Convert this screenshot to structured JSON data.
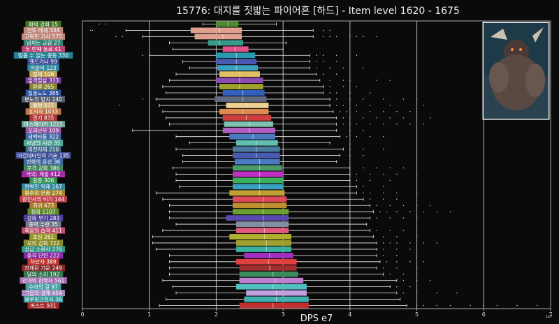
{
  "chart_data": {
    "type": "boxplot",
    "title": "15776: 대지를 짓밟는 파이어혼 [하드] - Item level 1620 - 1675",
    "top_title_fragment": "~ ~",
    "xlabel": "DPS e7",
    "scale_note": "1e7",
    "xlim": [
      0,
      7
    ],
    "x_ticks": [
      0,
      1,
      2,
      3,
      4,
      5,
      6,
      7
    ],
    "boss_image_label": "fire-horn-boss-portrait",
    "series": [
      {
        "name": "화력 강화 15",
        "color": "#4d8a2e",
        "whislo": 1.8,
        "q1": 2.0,
        "med": 2.18,
        "q3": 2.33,
        "whishi": 2.9,
        "fliers": [
          0.25,
          0.35
        ]
      },
      {
        "name": "전투 태세 334",
        "color": "#e0a090",
        "whislo": 0.65,
        "q1": 1.62,
        "med": 2.05,
        "q3": 2.38,
        "whishi": 3.45,
        "fliers": [
          0.12,
          0.15,
          3.6,
          3.7
        ]
      },
      {
        "name": "고독한 기사 575",
        "color": "#e0a090",
        "whislo": 0.9,
        "q1": 1.68,
        "med": 2.1,
        "q3": 2.38,
        "whishi": 3.45,
        "fliers": [
          0.5,
          0.6,
          3.6,
          3.7,
          3.8,
          4.0,
          4.1,
          4.2,
          4.4
        ]
      },
      {
        "name": "넘치는 교감 27",
        "color": "#3a9a8a",
        "whislo": 1.3,
        "q1": 1.88,
        "med": 2.05,
        "q3": 2.4,
        "whishi": 3.05,
        "fliers": []
      },
      {
        "name": "두 번째 동료 41",
        "color": "#e0508a",
        "whislo": 1.35,
        "q1": 2.1,
        "med": 2.28,
        "q3": 2.48,
        "whishi": 3.0,
        "fliers": []
      },
      {
        "name": "멈출 수 없는 충동 330",
        "color": "#2a9ab0",
        "whislo": 1.0,
        "q1": 2.0,
        "med": 2.3,
        "q3": 2.58,
        "whishi": 3.4,
        "fliers": [
          0.9,
          3.5,
          3.6,
          3.8,
          4.1
        ]
      },
      {
        "name": "핸드거너 99",
        "color": "#4a5ab0",
        "whislo": 1.5,
        "q1": 2.0,
        "med": 2.3,
        "q3": 2.6,
        "whishi": 3.4,
        "fliers": [
          3.5,
          3.6,
          3.8
        ]
      },
      {
        "name": "이슬비 123",
        "color": "#3aa0c0",
        "whislo": 1.6,
        "q1": 2.02,
        "med": 2.3,
        "q3": 2.62,
        "whishi": 3.4,
        "fliers": [
          3.5,
          3.7,
          3.9,
          4.2
        ]
      },
      {
        "name": "절제 106",
        "color": "#e0c060",
        "whislo": 1.4,
        "q1": 2.05,
        "med": 2.35,
        "q3": 2.65,
        "whishi": 3.5,
        "fliers": [
          3.6,
          3.8
        ]
      },
      {
        "name": "일격필살 333",
        "color": "#8a4ab0",
        "whislo": 1.3,
        "q1": 2.0,
        "med": 2.35,
        "q3": 2.7,
        "whishi": 3.55,
        "fliers": [
          3.7,
          3.9,
          4.0,
          4.4,
          4.6
        ]
      },
      {
        "name": "환류 265",
        "color": "#a0a030",
        "whislo": 1.2,
        "q1": 2.05,
        "med": 2.35,
        "q3": 2.7,
        "whishi": 3.6,
        "fliers": [
          3.7,
          3.9,
          4.1
        ]
      },
      {
        "name": "질풍노도 385",
        "color": "#3060c0",
        "whislo": 1.25,
        "q1": 2.1,
        "med": 2.4,
        "q3": 2.72,
        "whishi": 3.6,
        "fliers": [
          3.7,
          3.8,
          4.0,
          4.3
        ]
      },
      {
        "name": "분노의 망치 240",
        "color": "#606a80",
        "whislo": 1.1,
        "q1": 1.98,
        "med": 2.4,
        "q3": 2.75,
        "whishi": 3.7,
        "fliers": [
          0.9,
          3.8,
          4.0,
          4.2,
          4.5,
          4.8,
          5.0,
          6.0
        ]
      },
      {
        "name": "절정 577",
        "color": "#f0d090",
        "whislo": 1.15,
        "q1": 2.15,
        "med": 2.45,
        "q3": 2.78,
        "whishi": 3.7,
        "fliers": [
          0.55,
          3.8,
          3.9,
          4.1,
          4.3,
          4.6,
          5.1
        ]
      },
      {
        "name": "포식자 1033",
        "color": "#e08a50",
        "whislo": 1.2,
        "q1": 2.05,
        "med": 2.4,
        "q3": 2.78,
        "whishi": 3.75,
        "fliers": [
          3.85,
          3.95,
          4.1,
          4.3,
          4.5,
          4.7,
          4.9
        ]
      },
      {
        "name": "광기 835",
        "color": "#d04040",
        "whislo": 1.25,
        "q1": 2.1,
        "med": 2.45,
        "q3": 2.82,
        "whishi": 3.8,
        "fliers": [
          3.9,
          4.0,
          4.2,
          4.4,
          4.6,
          4.8,
          5.2
        ]
      },
      {
        "name": "피스메이커 1215",
        "color": "#80c0b0",
        "whislo": 1.3,
        "q1": 2.12,
        "med": 2.5,
        "q3": 2.85,
        "whishi": 3.8,
        "fliers": [
          3.9,
          4.0,
          4.1,
          4.3,
          4.5,
          4.7,
          4.9,
          5.1
        ]
      },
      {
        "name": "오의난무 109",
        "color": "#b060c0",
        "whislo": 0.75,
        "q1": 2.1,
        "med": 2.5,
        "q3": 2.88,
        "whishi": 3.8,
        "fliers": [
          4.0,
          4.2
        ]
      },
      {
        "name": "세맥타통 322",
        "color": "#4a7ac0",
        "whislo": 1.4,
        "q1": 2.2,
        "med": 2.55,
        "q3": 2.88,
        "whishi": 3.85,
        "fliers": [
          3.95,
          4.1,
          4.3,
          4.5
        ]
      },
      {
        "name": "사냥의 시간 35",
        "color": "#60c0b0",
        "whislo": 1.6,
        "q1": 2.3,
        "med": 2.6,
        "q3": 2.92,
        "whishi": 3.7,
        "fliers": []
      },
      {
        "name": "역천지체 210",
        "color": "#4a7aa0",
        "whislo": 1.4,
        "q1": 2.25,
        "med": 2.6,
        "q3": 2.95,
        "whishi": 3.9,
        "fliers": [
          4.0,
          4.2,
          4.5
        ]
      },
      {
        "name": "아르데타인의 기술 135",
        "color": "#4a5ab0",
        "whislo": 1.5,
        "q1": 2.25,
        "med": 2.6,
        "q3": 2.95,
        "whishi": 3.85,
        "fliers": [
          4.0,
          4.2
        ]
      },
      {
        "name": "진화의 유산 36",
        "color": "#4a7ac0",
        "whislo": 1.5,
        "q1": 2.28,
        "med": 2.65,
        "q3": 2.95,
        "whishi": 3.8,
        "fliers": []
      },
      {
        "name": "포격 강화 386",
        "color": "#4a9a6a",
        "whislo": 1.35,
        "q1": 2.25,
        "med": 2.65,
        "q3": 2.98,
        "whishi": 4.0,
        "fliers": [
          4.2,
          4.4,
          4.6,
          4.8
        ]
      },
      {
        "name": "극의: 체술 412",
        "color": "#c030c0",
        "whislo": 1.4,
        "q1": 2.25,
        "med": 2.65,
        "q3": 3.0,
        "whishi": 4.0,
        "fliers": [
          4.1,
          4.3,
          4.5,
          4.7,
          5.0
        ]
      },
      {
        "name": "갈증 306",
        "color": "#3ab05a",
        "whislo": 1.4,
        "q1": 2.25,
        "med": 2.65,
        "q3": 3.0,
        "whishi": 4.0,
        "fliers": [
          4.1,
          4.3,
          4.6
        ]
      },
      {
        "name": "완벽한 억제 167",
        "color": "#3aa0c0",
        "whislo": 1.45,
        "q1": 2.25,
        "med": 2.65,
        "q3": 3.0,
        "whishi": 4.1,
        "fliers": [
          4.2,
          4.5
        ]
      },
      {
        "name": "황후의 은총 274",
        "color": "#c0a030",
        "whislo": 1.1,
        "q1": 2.2,
        "med": 2.65,
        "q3": 3.02,
        "whishi": 4.1,
        "fliers": [
          4.2,
          4.3,
          4.5,
          4.7,
          5.0
        ]
      },
      {
        "name": "광전사의 비기 144",
        "color": "#e04a5a",
        "whislo": 1.2,
        "q1": 2.25,
        "med": 2.7,
        "q3": 3.05,
        "whishi": 4.2,
        "fliers": [
          4.3,
          4.5,
          4.7
        ]
      },
      {
        "name": "회귀 473",
        "color": "#c09030",
        "whislo": 1.3,
        "q1": 2.25,
        "med": 2.7,
        "q3": 3.05,
        "whishi": 4.3,
        "fliers": [
          4.4,
          4.6,
          4.8,
          5.0,
          5.2
        ]
      },
      {
        "name": "점화 1107",
        "color": "#6aa030",
        "whislo": 1.3,
        "q1": 2.25,
        "med": 2.7,
        "q3": 3.08,
        "whishi": 4.35,
        "fliers": [
          4.45,
          4.55,
          4.7,
          4.9,
          5.1,
          5.3,
          5.5
        ]
      },
      {
        "name": "강화 무기 283",
        "color": "#5a4ab0",
        "whislo": 1.3,
        "q1": 2.15,
        "med": 2.7,
        "q3": 3.08,
        "whishi": 4.3,
        "fliers": [
          4.4,
          4.6,
          4.8,
          5.0
        ]
      },
      {
        "name": "중력 수련 35",
        "color": "#8090a0",
        "whislo": 1.4,
        "q1": 2.3,
        "med": 2.7,
        "q3": 3.08,
        "whishi": 4.25,
        "fliers": []
      },
      {
        "name": "죽음의 습격 411",
        "color": "#e05a80",
        "whislo": 1.2,
        "q1": 2.3,
        "med": 2.72,
        "q3": 3.08,
        "whishi": 4.3,
        "fliers": [
          4.4,
          4.6,
          4.8
        ]
      },
      {
        "name": "초심 261",
        "color": "#b0b030",
        "whislo": 1.05,
        "q1": 2.2,
        "med": 2.72,
        "q3": 3.12,
        "whishi": 4.35,
        "fliers": [
          4.5,
          4.7,
          5.0
        ]
      },
      {
        "name": "오의 강화 722",
        "color": "#a0a030",
        "whislo": 1.05,
        "q1": 2.3,
        "med": 2.75,
        "q3": 3.12,
        "whishi": 4.4,
        "fliers": [
          4.5,
          4.6,
          4.7,
          4.9,
          5.1,
          5.3
        ]
      },
      {
        "name": "상급 소환사 276",
        "color": "#3ab0a0",
        "whislo": 1.1,
        "q1": 2.3,
        "med": 2.75,
        "q3": 3.12,
        "whishi": 4.4,
        "fliers": [
          4.5,
          4.7,
          4.9
        ]
      },
      {
        "name": "충격 단련 222",
        "color": "#a030c0",
        "whislo": 1.3,
        "q1": 2.42,
        "med": 2.8,
        "q3": 3.15,
        "whishi": 4.4,
        "fliers": [
          4.5,
          4.7
        ]
      },
      {
        "name": "처단자 389",
        "color": "#e04040",
        "whislo": 1.3,
        "q1": 2.3,
        "med": 2.78,
        "q3": 3.2,
        "whishi": 4.45,
        "fliers": [
          4.55,
          4.7,
          4.9,
          5.1
        ]
      },
      {
        "name": "잔재된 기운 249",
        "color": "#a03030",
        "whislo": 1.3,
        "q1": 2.35,
        "med": 2.8,
        "q3": 3.2,
        "whishi": 4.4,
        "fliers": [
          4.5,
          4.7,
          5.0
        ]
      },
      {
        "name": "달의 소리 192",
        "color": "#3a8a5a",
        "whislo": 1.3,
        "q1": 2.35,
        "med": 2.85,
        "q3": 3.22,
        "whishi": 4.5,
        "fliers": [
          4.6,
          4.8,
          5.0
        ]
      },
      {
        "name": "만개의 집행자 561",
        "color": "#c080d0",
        "whislo": 1.2,
        "q1": 2.35,
        "med": 2.88,
        "q3": 3.3,
        "whishi": 4.7,
        "fliers": [
          4.8,
          5.0,
          5.2
        ]
      },
      {
        "name": "수라의 길 97",
        "color": "#50c0c0",
        "whislo": 1.35,
        "q1": 2.3,
        "med": 2.85,
        "q3": 3.35,
        "whishi": 4.6,
        "fliers": [
          4.7,
          4.9
        ]
      },
      {
        "name": "그믐의 경계 454",
        "color": "#c0a0e0",
        "whislo": 1.4,
        "q1": 2.45,
        "med": 2.9,
        "q3": 3.35,
        "whishi": 4.7,
        "fliers": [
          4.8,
          5.0,
          5.3,
          5.6
        ]
      },
      {
        "name": "블루핑크천사 36",
        "color": "#40b0b0",
        "whislo": 1.25,
        "q1": 2.42,
        "med": 2.9,
        "q3": 3.38,
        "whishi": 4.75,
        "fliers": []
      },
      {
        "name": "버스트 931",
        "color": "#c03030",
        "whislo": 1.15,
        "q1": 2.35,
        "med": 2.85,
        "q3": 3.38,
        "whishi": 4.85,
        "fliers": [
          5.0,
          5.1,
          5.3,
          5.5,
          5.8,
          6.0,
          6.2,
          6.5,
          6.8
        ]
      }
    ]
  }
}
